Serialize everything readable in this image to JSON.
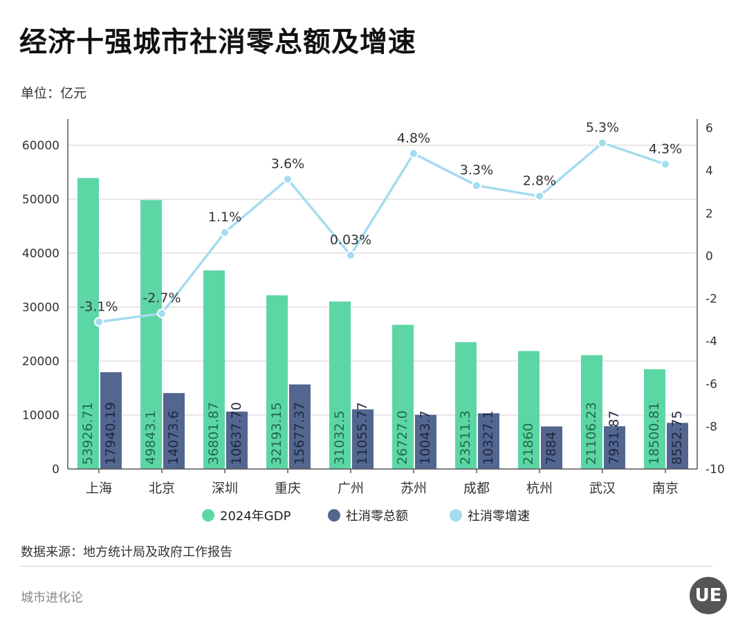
{
  "title": "经济十强城市社消零总额及增速",
  "unit": "单位：亿元",
  "source": "数据来源：地方统计局及政府工作报告",
  "brand": "城市进化论",
  "logo": "UE",
  "chart_data": {
    "type": "bar",
    "categories": [
      "上海",
      "北京",
      "深圳",
      "重庆",
      "广州",
      "苏州",
      "成都",
      "杭州",
      "武汉",
      "南京"
    ],
    "series": [
      {
        "name": "2024年GDP",
        "axis": "left",
        "type": "bar",
        "color": "#5dd6a6",
        "values": [
          53926.71,
          49843.1,
          36801.87,
          32193.15,
          31032.5,
          26727.0,
          23511.3,
          21860,
          21106.23,
          18500.81
        ],
        "labels": [
          "53926.71",
          "49843.1",
          "36801.87",
          "32193.15",
          "31032.5",
          "26727.0",
          "23511.3",
          "21860",
          "21106.23",
          "18500.81"
        ]
      },
      {
        "name": "社消零总额",
        "axis": "left",
        "type": "bar",
        "color": "#53668f",
        "values": [
          17940.19,
          14073.6,
          10637.7,
          15677.37,
          11055.77,
          10043.7,
          10327.1,
          7884,
          7931.87,
          8552.75
        ],
        "labels": [
          "17940.19",
          "14073.6",
          "10637.70",
          "15677.37",
          "11055.77",
          "10043.7",
          "10327.1",
          "7884",
          "7931.87",
          "8552.75"
        ]
      },
      {
        "name": "社消零增速",
        "axis": "right",
        "type": "line",
        "color": "#a4dcf0",
        "values": [
          -3.1,
          -2.7,
          1.1,
          3.6,
          0.03,
          4.8,
          3.3,
          2.8,
          5.3,
          4.3
        ],
        "labels": [
          "-3.1%",
          "-2.7%",
          "1.1%",
          "3.6%",
          "0.03%",
          "4.8%",
          "3.3%",
          "2.8%",
          "5.3%",
          "4.3%"
        ]
      }
    ],
    "ylim": [
      0,
      60000
    ],
    "yticks": [
      "0",
      "10000",
      "20000",
      "30000",
      "40000",
      "50000",
      "60000"
    ],
    "y2lim": [
      -10,
      6
    ],
    "y2ticks": [
      "-10",
      "-8",
      "-6",
      "-4",
      "-2",
      "0",
      "2",
      "4",
      "6"
    ],
    "legend": "bottom",
    "grid": true
  }
}
